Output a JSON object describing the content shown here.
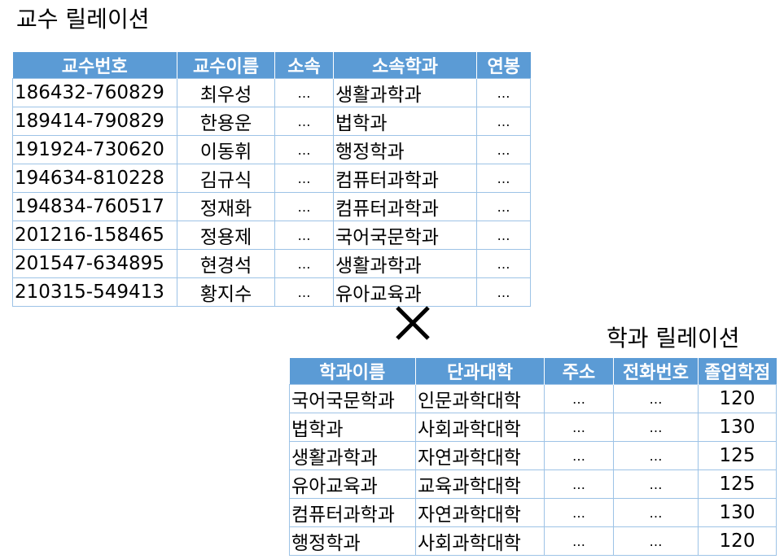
{
  "professor": {
    "title": "교수 릴레이션",
    "columns": [
      "교수번호",
      "교수이름",
      "소속",
      "소속학과",
      "연봉"
    ],
    "rows": [
      [
        "186432-760829",
        "최우성",
        "…",
        "생활과학과",
        "…"
      ],
      [
        "189414-790829",
        "한용운",
        "…",
        "법학과",
        "…"
      ],
      [
        "191924-730620",
        "이동휘",
        "…",
        "행정학과",
        "…"
      ],
      [
        "194634-810228",
        "김규식",
        "…",
        "컴퓨터과학과",
        "…"
      ],
      [
        "194834-760517",
        "정재화",
        "…",
        "컴퓨터과학과",
        "…"
      ],
      [
        "201216-158465",
        "정용제",
        "…",
        "국어국문학과",
        "…"
      ],
      [
        "201547-634895",
        "현경석",
        "…",
        "생활과학과",
        "…"
      ],
      [
        "210315-549413",
        "황지수",
        "…",
        "유아교육과",
        "…"
      ]
    ]
  },
  "department": {
    "title": "학과 릴레이션",
    "columns": [
      "학과이름",
      "단과대학",
      "주소",
      "전화번호",
      "졸업학점"
    ],
    "rows": [
      [
        "국어국문학과",
        "인문과학대학",
        "…",
        "…",
        "120"
      ],
      [
        "법학과",
        "사회과학대학",
        "…",
        "…",
        "130"
      ],
      [
        "생활과학과",
        "자연과학대학",
        "…",
        "…",
        "125"
      ],
      [
        "유아교육과",
        "교육과학대학",
        "…",
        "…",
        "125"
      ],
      [
        "컴퓨터과학과",
        "자연과학대학",
        "…",
        "…",
        "130"
      ],
      [
        "행정학과",
        "사회과학대학",
        "…",
        "…",
        "120"
      ]
    ]
  },
  "colors": {
    "header_fill": "#5b9bd5",
    "cell_border": "#9dc3e6",
    "operator": "#000000"
  },
  "operator_icon": "cross-product-icon"
}
